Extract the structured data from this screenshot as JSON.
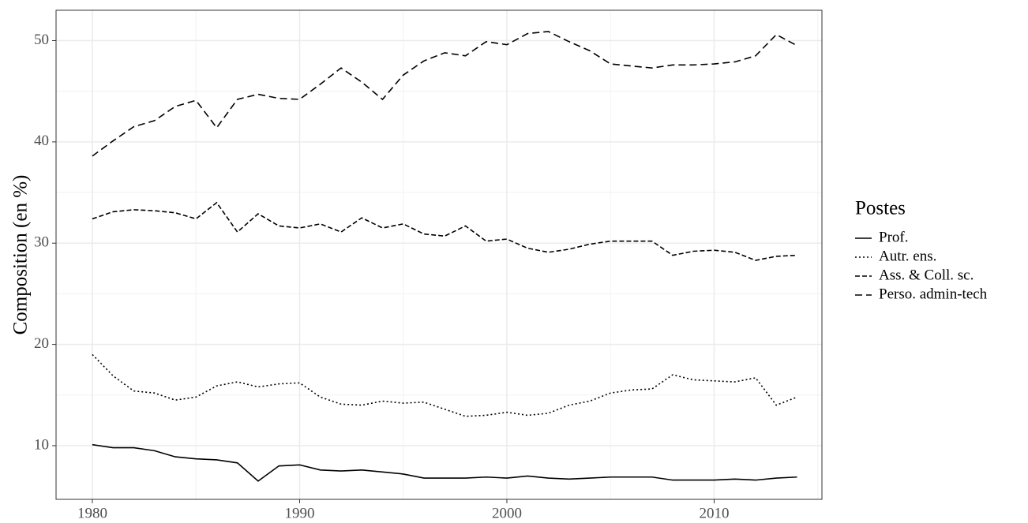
{
  "chart_data": {
    "type": "line",
    "y_label": "Composition (en %)",
    "legend_title": "Postes",
    "legend_position": "right",
    "grid": true,
    "x": [
      1980,
      1981,
      1982,
      1983,
      1984,
      1985,
      1986,
      1987,
      1988,
      1989,
      1990,
      1991,
      1992,
      1993,
      1994,
      1995,
      1996,
      1997,
      1998,
      1999,
      2000,
      2001,
      2002,
      2003,
      2004,
      2005,
      2006,
      2007,
      2008,
      2009,
      2010,
      2011,
      2012,
      2013,
      2014
    ],
    "xlim": [
      1978.25,
      2015.2
    ],
    "xticks": [
      1980,
      1990,
      2000,
      2010
    ],
    "minor_xticks": [
      1985,
      1995,
      2005,
      2015
    ],
    "ylim": [
      4.7,
      53.0
    ],
    "yticks": [
      10,
      20,
      30,
      40,
      50
    ],
    "minor_yticks": [
      15,
      25,
      35,
      45
    ],
    "series": [
      {
        "name": "Prof.",
        "color": "#000000",
        "dash": "none",
        "values": [
          10.1,
          9.8,
          9.8,
          9.5,
          8.9,
          8.7,
          8.6,
          8.3,
          6.5,
          8.0,
          8.1,
          7.6,
          7.5,
          7.6,
          7.4,
          7.2,
          6.8,
          6.8,
          6.8,
          6.9,
          6.8,
          7.0,
          6.8,
          6.7,
          6.8,
          6.9,
          6.9,
          6.9,
          6.6,
          6.6,
          6.6,
          6.7,
          6.6,
          6.8,
          6.9
        ]
      },
      {
        "name": "Autr. ens.",
        "color": "#000000",
        "dash": "2 3",
        "values": [
          19.0,
          16.9,
          15.4,
          15.2,
          14.5,
          14.8,
          15.9,
          16.3,
          15.8,
          16.1,
          16.2,
          14.8,
          14.1,
          14.0,
          14.4,
          14.2,
          14.3,
          13.6,
          12.9,
          13.0,
          13.3,
          13.0,
          13.2,
          14.0,
          14.4,
          15.2,
          15.5,
          15.6,
          17.0,
          16.5,
          16.4,
          16.3,
          16.7,
          14.0,
          14.8
        ]
      },
      {
        "name": "Ass. & Coll. sc.",
        "color": "#000000",
        "dash": "6 3",
        "values": [
          32.4,
          33.1,
          33.3,
          33.2,
          33.0,
          32.4,
          34.0,
          31.1,
          32.9,
          31.7,
          31.5,
          31.9,
          31.1,
          32.5,
          31.5,
          31.9,
          30.9,
          30.7,
          31.7,
          30.2,
          30.4,
          29.5,
          29.1,
          29.4,
          29.9,
          30.2,
          30.2,
          30.2,
          28.8,
          29.2,
          29.3,
          29.1,
          28.3,
          28.7,
          28.8
        ]
      },
      {
        "name": "Perso. admin-tech",
        "color": "#000000",
        "dash": "9 5",
        "values": [
          38.6,
          40.1,
          41.5,
          42.1,
          43.5,
          44.1,
          41.4,
          44.2,
          44.7,
          44.3,
          44.2,
          45.7,
          47.3,
          45.9,
          44.2,
          46.6,
          48.0,
          48.8,
          48.5,
          49.9,
          49.6,
          50.7,
          50.9,
          49.9,
          49.0,
          47.7,
          47.5,
          47.3,
          47.6,
          47.6,
          47.7,
          47.9,
          48.5,
          50.6,
          49.5
        ]
      }
    ]
  }
}
